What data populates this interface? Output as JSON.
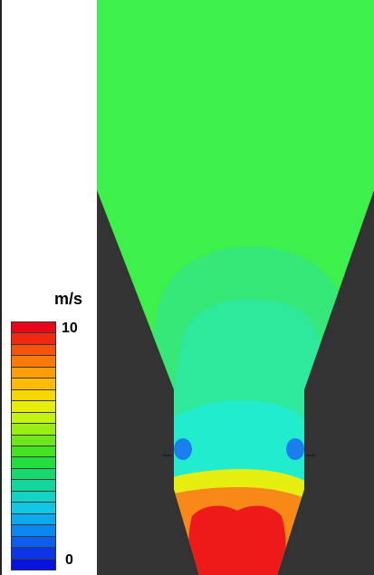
{
  "legend": {
    "unit": "m/s",
    "max_label": "10",
    "min_label": "0",
    "colors": [
      "#e8061a",
      "#f02a12",
      "#f5520c",
      "#f97a08",
      "#fb9d05",
      "#fdbb04",
      "#f7d703",
      "#e6ed06",
      "#c3f30e",
      "#99ee14",
      "#6ee81a",
      "#44e222",
      "#22dc40",
      "#17d86e",
      "#14d59a",
      "#12d3c6",
      "#10c8e6",
      "#0ea9ee",
      "#0c86f0",
      "#0a5ef0",
      "#0a36e8",
      "#0a12e0"
    ]
  },
  "field": {
    "background_color": "#333333",
    "colors": {
      "ambient": "#3ef04c",
      "mid": "#36e878",
      "light": "#2ee89c",
      "cyan": "#22ecce",
      "blue": "#1a7df0",
      "yellow": "#e6ee10",
      "orange": "#f88818",
      "red": "#ee1a1a"
    }
  }
}
